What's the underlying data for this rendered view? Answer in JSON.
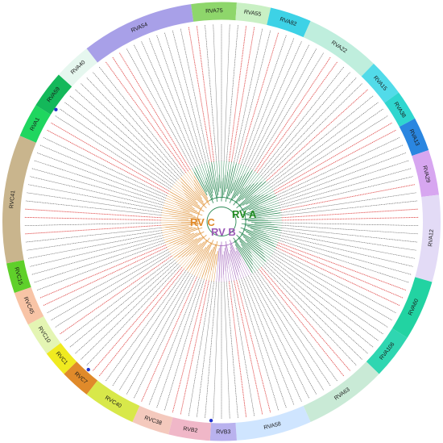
{
  "segments": [
    {
      "label": "RVA1",
      "color": "#1fd65f",
      "start": 293,
      "end": 302
    },
    {
      "label": "RVA59",
      "color": "#14b85a",
      "start": 302,
      "end": 312
    },
    {
      "label": "RVA40",
      "color": "#e6f7ef",
      "start": 312,
      "end": 322
    },
    {
      "label": "RVA54",
      "color": "#a8a0e8",
      "start": 322,
      "end": 352
    },
    {
      "label": "RVA75",
      "color": "#8ed66b",
      "start": 352,
      "end": 364
    },
    {
      "label": "RVA55",
      "color": "#c9f0c4",
      "start": 364,
      "end": 373
    },
    {
      "label": "RVA82",
      "color": "#3dd2e6",
      "start": 373,
      "end": 384
    },
    {
      "label": "RVA22",
      "color": "#bfeedd",
      "start": 24,
      "end": 44
    },
    {
      "label": "RVA15",
      "color": "#52dbe9",
      "start": 44,
      "end": 54
    },
    {
      "label": "RVA38",
      "color": "#2fd6cf",
      "start": 54,
      "end": 62
    },
    {
      "label": "RVA13",
      "color": "#2a86e0",
      "start": 62,
      "end": 71
    },
    {
      "label": "RVA29",
      "color": "#d7a6f0",
      "start": 71,
      "end": 83
    },
    {
      "label": "RVA12",
      "color": "#e3dbf6",
      "start": 83,
      "end": 106
    },
    {
      "label": "RVA60",
      "color": "#22d3a2",
      "start": 106,
      "end": 122
    },
    {
      "label": "RVA106",
      "color": "#2fd6b1",
      "start": 122,
      "end": 134
    },
    {
      "label": "RVA63",
      "color": "#c9ead6",
      "start": 134,
      "end": 156
    },
    {
      "label": "RVA58",
      "color": "#cfe5ff",
      "start": 156,
      "end": 176
    },
    {
      "label": "RVB3",
      "color": "#b9b2ee",
      "start": 176,
      "end": 183
    },
    {
      "label": "RVB2",
      "color": "#f0b7c8",
      "start": 183,
      "end": 194
    },
    {
      "label": "RVC38",
      "color": "#f4c9bd",
      "start": 194,
      "end": 204
    },
    {
      "label": "RVC40",
      "color": "#d8e84a",
      "start": 204,
      "end": 218
    },
    {
      "label": "RVC7",
      "color": "#e08a2a",
      "start": 218,
      "end": 226
    },
    {
      "label": "RVC1",
      "color": "#f0ea20",
      "start": 226,
      "end": 233
    },
    {
      "label": "RVC10",
      "color": "#e4f5b3",
      "start": 233,
      "end": 242
    },
    {
      "label": "RVC45",
      "color": "#f8c4a6",
      "start": 242,
      "end": 251
    },
    {
      "label": "RVC15",
      "color": "#5fd02a",
      "start": 251,
      "end": 259
    },
    {
      "label": "RVC41",
      "color": "#c9b58d",
      "start": 259,
      "end": 293
    }
  ],
  "clades": [
    {
      "label": "RV A",
      "color": "#228b22"
    },
    {
      "label": "RV B",
      "color": "#9b59b6"
    },
    {
      "label": "RV C",
      "color": "#e08a2a"
    }
  ],
  "tip_count": 150
}
